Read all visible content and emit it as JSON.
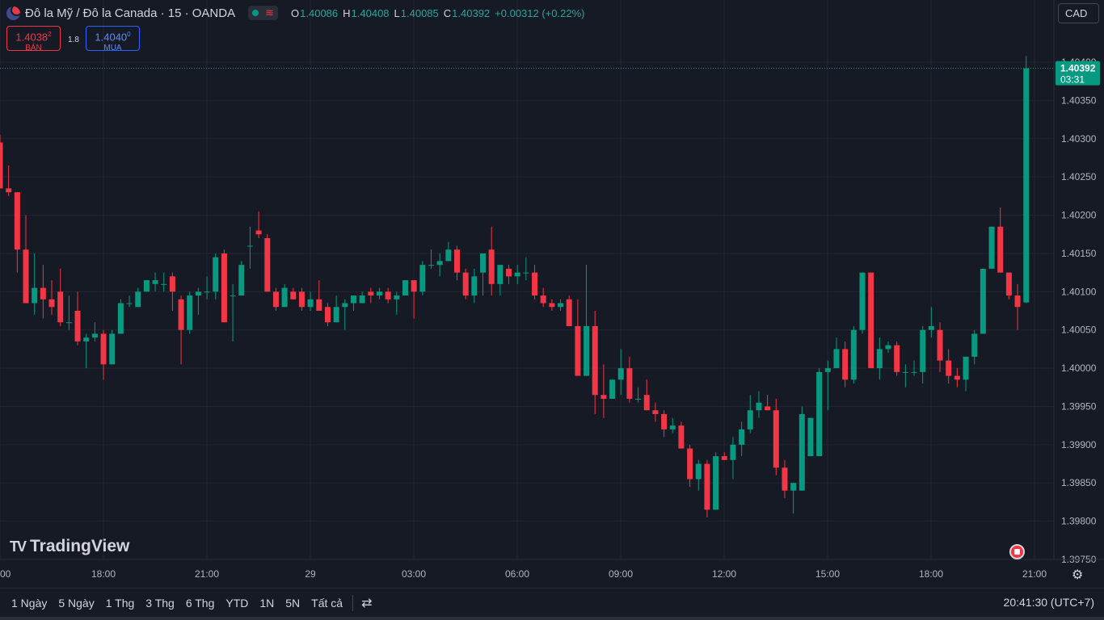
{
  "header": {
    "symbol_title": "Đô la Mỹ / Đô la Canada · 15 · OANDA",
    "status_icon": "wave-icon",
    "ohlc": {
      "o_label": "O",
      "o": "1.40086",
      "h_label": "H",
      "h": "1.40408",
      "l_label": "L",
      "l": "1.40085",
      "c_label": "C",
      "c": "1.40392",
      "change": "+0.00312 (+0.22%)"
    }
  },
  "trade": {
    "sell_price_main": "1.4038",
    "sell_price_sup": "2",
    "sell_label": "BÁN",
    "spread": "1.8",
    "buy_price_main": "1.4040",
    "buy_price_sup": "0",
    "buy_label": "MUA"
  },
  "currency_button": "CAD",
  "logo_text": "TradingView",
  "clock": "20:41:30 (UTC+7)",
  "ranges": [
    "1 Ngày",
    "5 Ngày",
    "1 Thg",
    "3 Thg",
    "6 Thg",
    "YTD",
    "1N",
    "5N",
    "Tất cả"
  ],
  "colors": {
    "up": "#089981",
    "down": "#f23645",
    "background": "#161a25",
    "grid": "#232632"
  },
  "chart_data": {
    "type": "candlestick",
    "interval": "15",
    "ylim": [
      1.3975,
      1.404
    ],
    "yticks": [
      "1.40400",
      "1.40350",
      "1.40300",
      "1.40250",
      "1.40200",
      "1.40150",
      "1.40100",
      "1.40050",
      "1.40000",
      "1.39950",
      "1.39900",
      "1.39850",
      "1.39800",
      "1.39750"
    ],
    "xticks": [
      "00",
      "18:00",
      "21:00",
      "29",
      "03:00",
      "06:00",
      "09:00",
      "12:00",
      "15:00",
      "18:00",
      "21:00"
    ],
    "last_price": "1.40392",
    "countdown": "03:31",
    "candles": [
      [
        1.40295,
        1.40305,
        1.40235,
        1.40235
      ],
      [
        1.40235,
        1.40265,
        1.40225,
        1.4023
      ],
      [
        1.4023,
        1.4023,
        1.40125,
        1.40155
      ],
      [
        1.40155,
        1.402,
        1.40085,
        1.40085
      ],
      [
        1.40085,
        1.4015,
        1.4007,
        1.40105
      ],
      [
        1.40105,
        1.40135,
        1.40065,
        1.4009
      ],
      [
        1.4009,
        1.40115,
        1.4007,
        1.4008
      ],
      [
        1.401,
        1.4013,
        1.40055,
        1.4006
      ],
      [
        1.4006,
        1.40095,
        1.4005,
        1.4006
      ],
      [
        1.40075,
        1.401,
        1.4003,
        1.40035
      ],
      [
        1.40035,
        1.40045,
        1.4,
        1.4004
      ],
      [
        1.4004,
        1.4006,
        1.40035,
        1.40045
      ],
      [
        1.40045,
        1.4005,
        1.39985,
        1.40005
      ],
      [
        1.40005,
        1.4005,
        1.40005,
        1.40045
      ],
      [
        1.40045,
        1.4009,
        1.40045,
        1.40085
      ],
      [
        1.40085,
        1.40095,
        1.4008,
        1.40085
      ],
      [
        1.4008,
        1.40105,
        1.4008,
        1.401
      ],
      [
        1.401,
        1.40115,
        1.401,
        1.40115
      ],
      [
        1.4011,
        1.40125,
        1.401,
        1.40115
      ],
      [
        1.4011,
        1.40125,
        1.401,
        1.4011
      ],
      [
        1.4012,
        1.40125,
        1.40075,
        1.401
      ],
      [
        1.4009,
        1.40095,
        1.40005,
        1.4005
      ],
      [
        1.4005,
        1.401,
        1.40045,
        1.40095
      ],
      [
        1.40095,
        1.40105,
        1.4007,
        1.401
      ],
      [
        1.401,
        1.4012,
        1.4009,
        1.401
      ],
      [
        1.401,
        1.4015,
        1.4009,
        1.40145
      ],
      [
        1.4015,
        1.40155,
        1.4006,
        1.4006
      ],
      [
        1.40095,
        1.4011,
        1.40035,
        1.40095
      ],
      [
        1.40095,
        1.4014,
        1.40095,
        1.40135
      ],
      [
        1.4016,
        1.40185,
        1.4013,
        1.4016
      ],
      [
        1.4018,
        1.40205,
        1.4017,
        1.40175
      ],
      [
        1.4017,
        1.40175,
        1.401,
        1.401
      ],
      [
        1.401,
        1.40105,
        1.40075,
        1.4008
      ],
      [
        1.4008,
        1.4011,
        1.4008,
        1.40105
      ],
      [
        1.401,
        1.40105,
        1.4009,
        1.4009
      ],
      [
        1.401,
        1.40105,
        1.40075,
        1.4008
      ],
      [
        1.4008,
        1.401,
        1.40075,
        1.4009
      ],
      [
        1.4009,
        1.40115,
        1.40075,
        1.40075
      ],
      [
        1.4008,
        1.40085,
        1.40055,
        1.4006
      ],
      [
        1.4006,
        1.40095,
        1.4006,
        1.4008
      ],
      [
        1.4008,
        1.4009,
        1.4005,
        1.40085
      ],
      [
        1.40085,
        1.40095,
        1.40075,
        1.40095
      ],
      [
        1.40085,
        1.401,
        1.40085,
        1.40095
      ],
      [
        1.401,
        1.40105,
        1.40085,
        1.40095
      ],
      [
        1.40095,
        1.40105,
        1.4009,
        1.401
      ],
      [
        1.401,
        1.40105,
        1.40085,
        1.4009
      ],
      [
        1.4009,
        1.401,
        1.4007,
        1.40095
      ],
      [
        1.40095,
        1.40115,
        1.40095,
        1.40115
      ],
      [
        1.40115,
        1.40115,
        1.40065,
        1.401
      ],
      [
        1.401,
        1.4014,
        1.40095,
        1.40135
      ],
      [
        1.40135,
        1.40155,
        1.4013,
        1.40135
      ],
      [
        1.40135,
        1.4015,
        1.4012,
        1.4014
      ],
      [
        1.4014,
        1.40165,
        1.4014,
        1.40155
      ],
      [
        1.40155,
        1.4016,
        1.40115,
        1.40125
      ],
      [
        1.40125,
        1.4013,
        1.4009,
        1.40095
      ],
      [
        1.40095,
        1.4013,
        1.40085,
        1.4012
      ],
      [
        1.40125,
        1.4015,
        1.40095,
        1.4015
      ],
      [
        1.40155,
        1.40185,
        1.40095,
        1.4011
      ],
      [
        1.4011,
        1.40135,
        1.40095,
        1.40135
      ],
      [
        1.4013,
        1.40135,
        1.4011,
        1.4012
      ],
      [
        1.4012,
        1.40135,
        1.4011,
        1.40125
      ],
      [
        1.40125,
        1.40145,
        1.40115,
        1.40125
      ],
      [
        1.40125,
        1.40135,
        1.4009,
        1.40095
      ],
      [
        1.40095,
        1.40105,
        1.4008,
        1.40085
      ],
      [
        1.40085,
        1.4009,
        1.40075,
        1.4008
      ],
      [
        1.4008,
        1.4009,
        1.40075,
        1.40085
      ],
      [
        1.4009,
        1.40095,
        1.40055,
        1.40055
      ],
      [
        1.40055,
        1.4009,
        1.3999,
        1.3999
      ],
      [
        1.3999,
        1.40135,
        1.3999,
        1.40055
      ],
      [
        1.40055,
        1.40075,
        1.3994,
        1.39965
      ],
      [
        1.39965,
        1.40005,
        1.39935,
        1.3996
      ],
      [
        1.3996,
        1.39985,
        1.3996,
        1.39985
      ],
      [
        1.39985,
        1.40025,
        1.39965,
        1.4
      ],
      [
        1.4,
        1.40015,
        1.39955,
        1.3996
      ],
      [
        1.3996,
        1.39975,
        1.39955,
        1.3996
      ],
      [
        1.39965,
        1.39985,
        1.39945,
        1.39945
      ],
      [
        1.39945,
        1.39955,
        1.3993,
        1.3994
      ],
      [
        1.3994,
        1.39945,
        1.3991,
        1.3992
      ],
      [
        1.3992,
        1.39935,
        1.39915,
        1.39925
      ],
      [
        1.39925,
        1.3993,
        1.39895,
        1.39895
      ],
      [
        1.39895,
        1.399,
        1.39845,
        1.39855
      ],
      [
        1.39855,
        1.3988,
        1.3984,
        1.39875
      ],
      [
        1.39875,
        1.3988,
        1.39805,
        1.39815
      ],
      [
        1.39815,
        1.3989,
        1.39815,
        1.39885
      ],
      [
        1.39885,
        1.3989,
        1.3988,
        1.3988
      ],
      [
        1.3988,
        1.3991,
        1.39855,
        1.399
      ],
      [
        1.399,
        1.3993,
        1.39885,
        1.3992
      ],
      [
        1.3992,
        1.39965,
        1.39915,
        1.39945
      ],
      [
        1.39945,
        1.3997,
        1.39935,
        1.39955
      ],
      [
        1.3995,
        1.39965,
        1.39945,
        1.39945
      ],
      [
        1.39945,
        1.3996,
        1.3986,
        1.3987
      ],
      [
        1.3987,
        1.3988,
        1.3983,
        1.3984
      ],
      [
        1.3984,
        1.3985,
        1.3981,
        1.3985
      ],
      [
        1.3984,
        1.3995,
        1.3984,
        1.3994
      ],
      [
        1.39885,
        1.39935,
        1.39885,
        1.39935
      ],
      [
        1.39885,
        1.4,
        1.39885,
        1.39995
      ],
      [
        1.39995,
        1.4001,
        1.39945,
        1.4
      ],
      [
        1.4,
        1.4004,
        1.4,
        1.40025
      ],
      [
        1.40025,
        1.40035,
        1.39975,
        1.39985
      ],
      [
        1.39985,
        1.40055,
        1.3998,
        1.4005
      ],
      [
        1.4005,
        1.40125,
        1.40045,
        1.40125
      ],
      [
        1.40125,
        1.40125,
        1.4,
        1.4
      ],
      [
        1.4,
        1.4004,
        1.39985,
        1.40025
      ],
      [
        1.40025,
        1.40035,
        1.4002,
        1.4003
      ],
      [
        1.4003,
        1.40035,
        1.3999,
        1.39995
      ],
      [
        1.39995,
        1.40005,
        1.39975,
        1.39995
      ],
      [
        1.39995,
        1.4001,
        1.3999,
        1.39995
      ],
      [
        1.39995,
        1.40055,
        1.3998,
        1.4005
      ],
      [
        1.4005,
        1.4008,
        1.4004,
        1.40055
      ],
      [
        1.4005,
        1.4006,
        1.39995,
        1.4001
      ],
      [
        1.4001,
        1.40025,
        1.3998,
        1.3999
      ],
      [
        1.3999,
        1.4,
        1.39975,
        1.39985
      ],
      [
        1.39985,
        1.40015,
        1.3997,
        1.40015
      ],
      [
        1.40015,
        1.4005,
        1.40005,
        1.40045
      ],
      [
        1.40045,
        1.4013,
        1.40045,
        1.4013
      ],
      [
        1.4013,
        1.40185,
        1.4013,
        1.40185
      ],
      [
        1.40185,
        1.4021,
        1.40125,
        1.40125
      ],
      [
        1.40125,
        1.40125,
        1.4009,
        1.40095
      ],
      [
        1.40095,
        1.4011,
        1.4005,
        1.4008
      ],
      [
        1.40086,
        1.40408,
        1.40085,
        1.40392
      ]
    ]
  }
}
